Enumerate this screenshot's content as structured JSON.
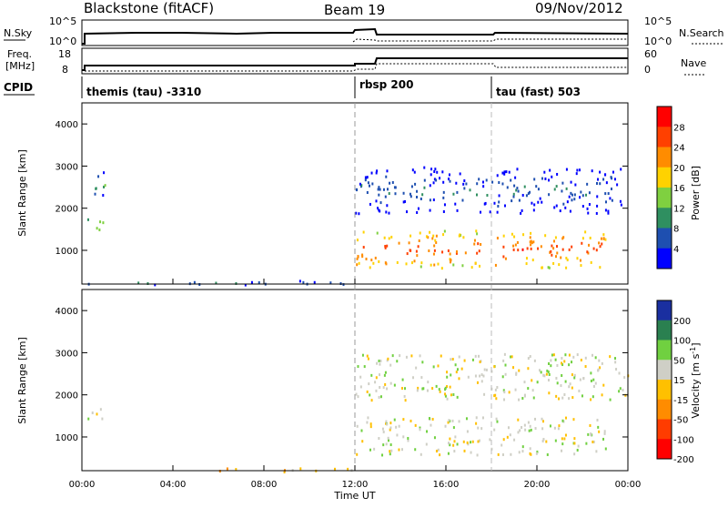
{
  "header": {
    "station": "Blackstone (fitACF)",
    "beam": "Beam 19",
    "date": "09/Nov/2012"
  },
  "summary_panel": {
    "nsky_label": "N.Sky",
    "nsky_ticks": [
      "10^5",
      "10^0"
    ],
    "nsearch_label": "N.Search",
    "nsearch_ticks": [
      "10^5",
      "10^0"
    ],
    "freq_label_line1": "Freq.",
    "freq_label_line2": "[MHz]",
    "freq_ticks": [
      "18",
      "8"
    ],
    "nave_label": "Nave",
    "nave_ticks": [
      "60",
      "0"
    ],
    "cpid_label": "CPID"
  },
  "cpid_modes": [
    {
      "label": "themis (tau) -3310",
      "start_hour": 0
    },
    {
      "label": "rbsp 200",
      "start_hour": 12.0
    },
    {
      "label": "tau (fast) 503",
      "start_hour": 18.0
    }
  ],
  "time_axis": {
    "label": "Time UT",
    "ticks": [
      "00:00",
      "04:00",
      "08:00",
      "12:00",
      "16:00",
      "20:00",
      "00:00"
    ]
  },
  "power_colorbar": {
    "label": "Power [dB]",
    "ticks": [
      "28",
      "24",
      "20",
      "16",
      "12",
      "8",
      "4"
    ],
    "colors": [
      "#ff0000",
      "#ff4000",
      "#ff8c00",
      "#ffd200",
      "#7fd040",
      "#2f8f60",
      "#1e4fb0",
      "#0000ff"
    ]
  },
  "velocity_colorbar": {
    "label": "Velocity [m s",
    "label_sup": "-1",
    "label_close": "]",
    "ticks": [
      "200",
      "100",
      "50",
      "15",
      "-15",
      "-50",
      "-100",
      "-200"
    ],
    "colors": [
      "#1a2fa0",
      "#2a8050",
      "#70d040",
      "#cfcfc6",
      "#ffc000",
      "#ff8c00",
      "#ff3c00",
      "#ff0000"
    ]
  },
  "chart_data": [
    {
      "type": "heatmap",
      "title": "",
      "xlabel": "Time UT",
      "ylabel": "Slant Range [km]",
      "xlim": [
        0,
        24
      ],
      "ylim": [
        200,
        4500
      ],
      "yticks": [
        1000,
        2000,
        3000,
        4000
      ],
      "colorbar_label": "Power [dB]",
      "colorbar_range": [
        0,
        32
      ],
      "regions": [
        {
          "name": "early patch",
          "t": [
            0.1,
            0.9
          ],
          "r": [
            1450,
            1800
          ],
          "value": 18
        },
        {
          "name": "early patch high",
          "t": [
            0.4,
            1.0
          ],
          "r": [
            2200,
            3000
          ],
          "value": 12
        },
        {
          "name": "near-range",
          "t": [
            0.2,
            12.0
          ],
          "r": [
            200,
            300
          ],
          "value": 10
        },
        {
          "name": "post-12 strong",
          "t": [
            12.0,
            23.0
          ],
          "r": [
            600,
            1500
          ],
          "value": 26
        },
        {
          "name": "post-12 weak",
          "t": [
            12.0,
            24.0
          ],
          "r": [
            1900,
            3000
          ],
          "value": 8
        }
      ]
    },
    {
      "type": "heatmap",
      "title": "",
      "xlabel": "Time UT",
      "ylabel": "Slant Range [km]",
      "xlim": [
        0,
        24
      ],
      "ylim": [
        200,
        4500
      ],
      "yticks": [
        1000,
        2000,
        3000,
        4000
      ],
      "colorbar_label": "Velocity [m s-1]",
      "colorbar_range": [
        -250,
        250
      ],
      "regions": [
        {
          "name": "early patch",
          "t": [
            0.1,
            0.9
          ],
          "r": [
            1450,
            1800
          ],
          "value": 0
        },
        {
          "name": "post-12 ground",
          "t": [
            12.0,
            23.0
          ],
          "r": [
            600,
            1500
          ],
          "value": 0
        },
        {
          "name": "post-12 upper",
          "t": [
            12.0,
            24.0
          ],
          "r": [
            1900,
            3000
          ],
          "value": 0
        },
        {
          "name": "near-range",
          "t": [
            4.0,
            12.0
          ],
          "r": [
            200,
            280
          ],
          "value": -40
        }
      ]
    }
  ]
}
